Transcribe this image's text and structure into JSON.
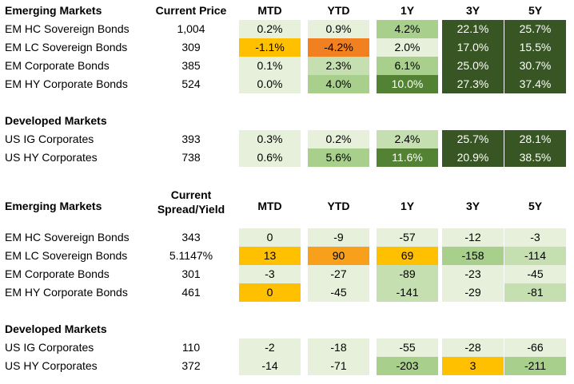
{
  "cols": [
    "MTD",
    "YTD",
    "1Y",
    "3Y",
    "5Y"
  ],
  "sections": [
    {
      "header": "Emerging Markets",
      "col2": "Current Price",
      "rows": [
        {
          "name": "EM HC Sovereign Bonds",
          "v": "1,004",
          "vals": [
            "0.2%",
            "0.9%",
            "4.2%",
            "22.1%",
            "25.7%"
          ]
        },
        {
          "name": "EM LC Sovereign Bonds",
          "v": "309",
          "vals": [
            "-1.1%",
            "-4.2%",
            "2.0%",
            "17.0%",
            "15.5%"
          ]
        },
        {
          "name": "EM Corporate Bonds",
          "v": "385",
          "vals": [
            "0.1%",
            "2.3%",
            "6.1%",
            "25.0%",
            "30.7%"
          ]
        },
        {
          "name": "EM HY Corporate Bonds",
          "v": "524",
          "vals": [
            "0.0%",
            "4.0%",
            "10.0%",
            "27.3%",
            "37.4%"
          ]
        }
      ]
    },
    {
      "header": "Developed Markets",
      "rows": [
        {
          "name": "US IG Corporates",
          "v": "393",
          "vals": [
            "0.3%",
            "0.2%",
            "2.4%",
            "25.7%",
            "28.1%"
          ]
        },
        {
          "name": "US HY Corporates",
          "v": "738",
          "vals": [
            "0.6%",
            "5.6%",
            "11.6%",
            "20.9%",
            "38.5%"
          ]
        }
      ]
    },
    {
      "header": "Emerging Markets",
      "col2": "Current\nSpread/Yield",
      "rows": [
        {
          "name": "EM HC Sovereign Bonds",
          "v": "343",
          "vals": [
            "0",
            "-9",
            "-57",
            "-12",
            "-3"
          ]
        },
        {
          "name": "EM LC Sovereign Bonds",
          "v": "5.1147%",
          "vals": [
            "13",
            "90",
            "69",
            "-158",
            "-114"
          ]
        },
        {
          "name": "EM Corporate Bonds",
          "v": "301",
          "vals": [
            "-3",
            "-27",
            "-89",
            "-23",
            "-45"
          ]
        },
        {
          "name": "EM HY Corporate Bonds",
          "v": "461",
          "vals": [
            "0",
            "-45",
            "-141",
            "-29",
            "-81"
          ]
        }
      ]
    },
    {
      "header": "Developed Markets",
      "rows": [
        {
          "name": "US IG Corporates",
          "v": "110",
          "vals": [
            "-2",
            "-18",
            "-55",
            "-28",
            "-66"
          ]
        },
        {
          "name": "US HY Corporates",
          "v": "372",
          "vals": [
            "-14",
            "-71",
            "-203",
            "3",
            "-211"
          ]
        }
      ]
    }
  ],
  "heatmap_colors": {
    "pale_green": "#e6f0da",
    "light_green": "#c6dfb0",
    "green": "#a8d08c",
    "dark_green": "#548235",
    "darkest_green": "#375623",
    "yellow": "#ffc000",
    "orange": "#f08020",
    "amber": "#f8a01c"
  }
}
